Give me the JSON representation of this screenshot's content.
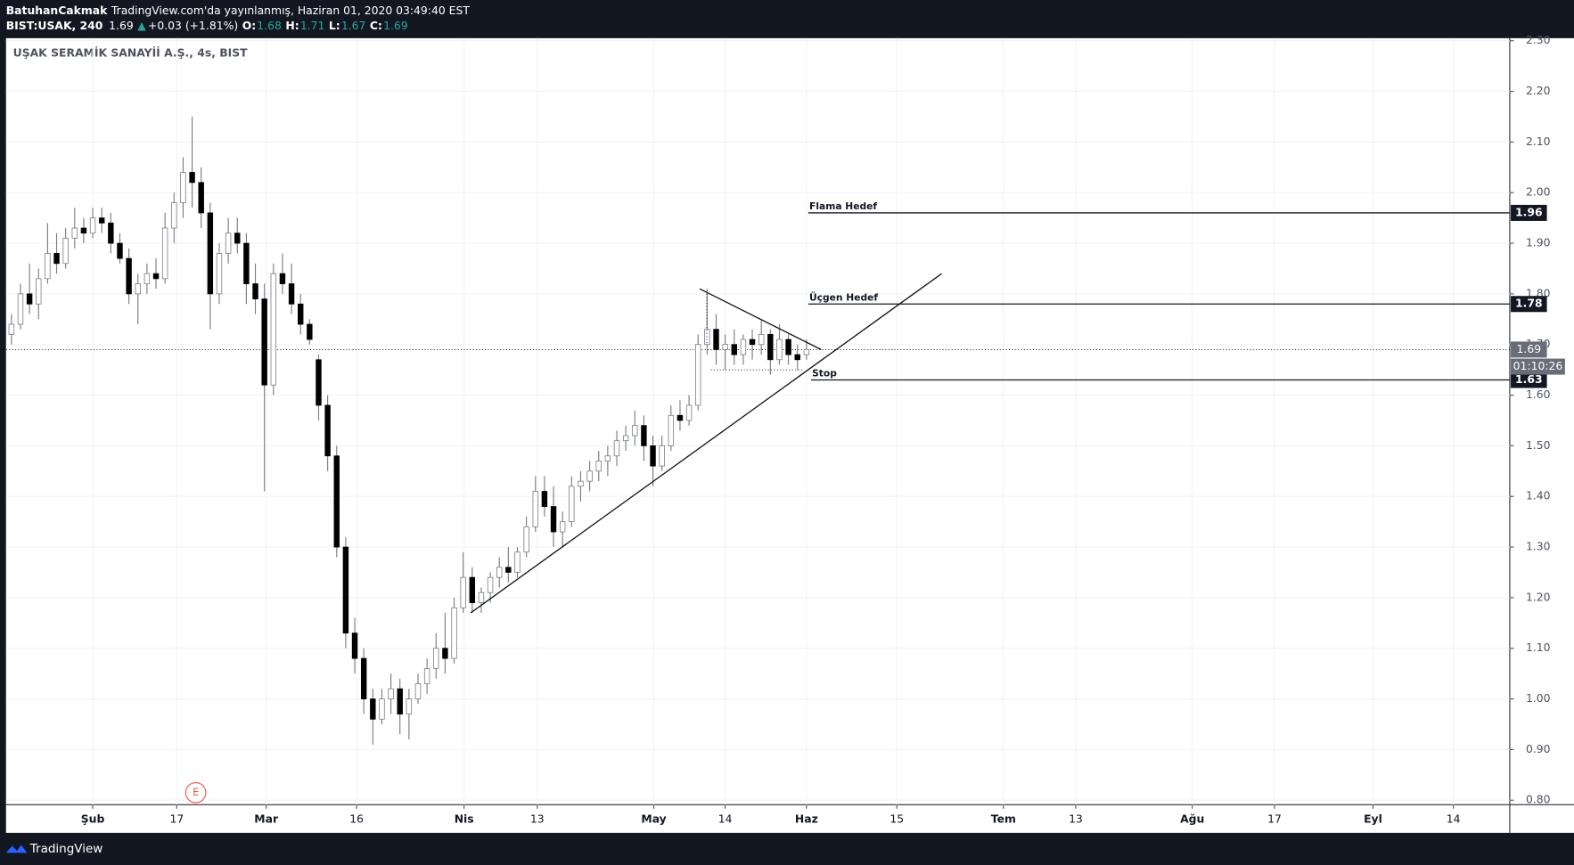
{
  "header": {
    "author": "BatuhanCakmak",
    "published": "TradingView.com'da yayınlanmış, Haziran 01, 2020 03:49:40 EST",
    "symbol": "BIST:USAK, 240",
    "last": 1.69,
    "arrow": "▲",
    "change": "+0.03 (+1.81%)",
    "ohlc": [
      {
        "label": "O:",
        "value": 1.68
      },
      {
        "label": "H:",
        "value": 1.71
      },
      {
        "label": "L:",
        "value": 1.67
      },
      {
        "label": "C:",
        "value": 1.69
      }
    ]
  },
  "footer": {
    "brand": "TradingView"
  },
  "chart_data": {
    "type": "candlestick",
    "title": "UŞAK SERAMİK SANAYİİ A.Ş., 4s, BIST",
    "up_color": "#ffffff",
    "down_color": "#000000",
    "wick_color": "#787b86",
    "grid": true,
    "x": [
      0.6,
      1.6,
      2.6,
      3.6,
      4.6,
      5.6,
      6.6,
      7.6,
      8.6,
      9.6,
      10.6,
      11.6,
      12.6,
      13.6,
      14.6,
      15.6,
      16.6,
      17.6,
      18.6,
      19.6,
      20.6,
      21.6,
      22.6,
      23.6,
      24.6,
      25.6,
      26.6,
      27.6,
      28.6,
      29.6,
      30.6,
      31.6,
      32.6,
      33.6,
      34.6,
      35.6,
      36.6,
      37.6,
      38.6,
      39.6,
      40.6,
      41.6,
      42.6,
      43.6,
      44.6,
      45.6,
      46.6,
      47.6,
      48.6,
      49.6,
      50.6,
      51.6,
      52.6,
      53.6,
      54.6,
      55.6,
      56.6,
      57.6,
      58.6,
      59.6,
      60.6,
      61.6,
      62.6,
      63.6,
      64.6,
      65.6,
      66.6,
      67.6,
      68.6,
      69.6,
      70.6,
      71.6,
      72.6,
      73.6,
      74.6,
      75.6,
      76.6,
      77.6,
      78.6,
      79.6,
      80.6,
      81.6,
      82.6,
      83.6,
      84.6,
      85.6,
      86.6,
      87.6,
      88.6
    ],
    "open": [
      1.72,
      1.74,
      1.8,
      1.78,
      1.83,
      1.88,
      1.86,
      1.91,
      1.93,
      1.92,
      1.95,
      1.94,
      1.9,
      1.87,
      1.8,
      1.82,
      1.84,
      1.83,
      1.93,
      1.98,
      2.04,
      2.02,
      1.96,
      1.8,
      1.88,
      1.92,
      1.9,
      1.82,
      1.79,
      1.62,
      1.84,
      1.82,
      1.78,
      1.74,
      1.67,
      1.58,
      1.48,
      1.3,
      1.13,
      1.08,
      1.0,
      0.96,
      1.0,
      1.02,
      0.97,
      1.0,
      1.03,
      1.06,
      1.1,
      1.08,
      1.18,
      1.24,
      1.19,
      1.21,
      1.24,
      1.26,
      1.25,
      1.29,
      1.34,
      1.41,
      1.38,
      1.33,
      1.35,
      1.42,
      1.43,
      1.45,
      1.47,
      1.48,
      1.51,
      1.52,
      1.54,
      1.5,
      1.46,
      1.5,
      1.56,
      1.55,
      1.58,
      1.7,
      1.73,
      1.69,
      1.7,
      1.68,
      1.71,
      1.7,
      1.72,
      1.67,
      1.71,
      1.68,
      1.68
    ],
    "high": [
      1.76,
      1.82,
      1.86,
      1.85,
      1.94,
      1.92,
      1.93,
      1.97,
      1.95,
      1.97,
      1.97,
      1.96,
      1.92,
      1.89,
      1.84,
      1.86,
      1.87,
      1.96,
      2.0,
      2.07,
      2.15,
      2.05,
      1.98,
      1.9,
      1.95,
      1.95,
      1.92,
      1.86,
      1.82,
      1.86,
      1.88,
      1.86,
      1.8,
      1.75,
      1.68,
      1.6,
      1.5,
      1.32,
      1.16,
      1.1,
      1.02,
      1.02,
      1.05,
      1.04,
      1.02,
      1.05,
      1.08,
      1.13,
      1.17,
      1.2,
      1.29,
      1.26,
      1.22,
      1.25,
      1.28,
      1.3,
      1.3,
      1.36,
      1.44,
      1.44,
      1.42,
      1.37,
      1.44,
      1.45,
      1.47,
      1.49,
      1.5,
      1.53,
      1.54,
      1.57,
      1.56,
      1.52,
      1.52,
      1.58,
      1.59,
      1.6,
      1.72,
      1.81,
      1.76,
      1.72,
      1.73,
      1.72,
      1.73,
      1.75,
      1.73,
      1.74,
      1.72,
      1.7,
      1.71
    ],
    "low": [
      1.7,
      1.73,
      1.76,
      1.75,
      1.82,
      1.84,
      1.85,
      1.89,
      1.9,
      1.91,
      1.92,
      1.88,
      1.86,
      1.78,
      1.74,
      1.8,
      1.81,
      1.82,
      1.9,
      1.95,
      1.97,
      1.93,
      1.73,
      1.78,
      1.86,
      1.88,
      1.78,
      1.76,
      1.41,
      1.6,
      1.8,
      1.76,
      1.72,
      1.7,
      1.55,
      1.45,
      1.28,
      1.1,
      1.05,
      0.97,
      0.91,
      0.95,
      0.97,
      0.93,
      0.92,
      0.99,
      1.01,
      1.04,
      1.05,
      1.07,
      1.17,
      1.17,
      1.17,
      1.19,
      1.22,
      1.23,
      1.24,
      1.28,
      1.33,
      1.36,
      1.3,
      1.3,
      1.34,
      1.39,
      1.41,
      1.43,
      1.44,
      1.46,
      1.49,
      1.5,
      1.47,
      1.42,
      1.45,
      1.49,
      1.53,
      1.54,
      1.57,
      1.68,
      1.66,
      1.65,
      1.66,
      1.66,
      1.67,
      1.68,
      1.64,
      1.66,
      1.66,
      1.65,
      1.67
    ],
    "close": [
      1.74,
      1.8,
      1.78,
      1.83,
      1.88,
      1.86,
      1.91,
      1.93,
      1.92,
      1.95,
      1.94,
      1.9,
      1.87,
      1.8,
      1.82,
      1.84,
      1.83,
      1.93,
      1.98,
      2.04,
      2.02,
      1.96,
      1.8,
      1.88,
      1.92,
      1.9,
      1.82,
      1.79,
      1.62,
      1.84,
      1.82,
      1.78,
      1.74,
      1.71,
      1.58,
      1.48,
      1.3,
      1.13,
      1.08,
      1.0,
      0.96,
      1.0,
      1.02,
      0.97,
      1.0,
      1.03,
      1.06,
      1.1,
      1.08,
      1.18,
      1.24,
      1.19,
      1.21,
      1.24,
      1.26,
      1.25,
      1.29,
      1.34,
      1.41,
      1.38,
      1.33,
      1.35,
      1.42,
      1.43,
      1.45,
      1.47,
      1.48,
      1.51,
      1.52,
      1.54,
      1.5,
      1.46,
      1.5,
      1.56,
      1.55,
      1.58,
      1.7,
      1.73,
      1.69,
      1.7,
      1.68,
      1.71,
      1.7,
      1.72,
      1.67,
      1.71,
      1.68,
      1.67,
      1.69
    ],
    "xlim": [
      0,
      166.44
    ],
    "xticks": [
      {
        "value": 9.6,
        "label": "Şub"
      },
      {
        "value": 18.9,
        "label": "17"
      },
      {
        "value": 28.8,
        "label": "Mar"
      },
      {
        "value": 38.8,
        "label": "16"
      },
      {
        "value": 50.7,
        "label": "Nis"
      },
      {
        "value": 58.8,
        "label": "13"
      },
      {
        "value": 71.7,
        "label": "May"
      },
      {
        "value": 79.6,
        "label": "14"
      },
      {
        "value": 88.6,
        "label": "Haz"
      },
      {
        "value": 98.6,
        "label": "15"
      },
      {
        "value": 110.4,
        "label": "Tem"
      },
      {
        "value": 118.4,
        "label": "13"
      },
      {
        "value": 131.3,
        "label": "Ağu"
      },
      {
        "value": 140.4,
        "label": "17"
      },
      {
        "value": 151.3,
        "label": "Eyl"
      },
      {
        "value": 160.2,
        "label": "14"
      }
    ],
    "ylim": [
      0.791,
      2.305
    ],
    "yticks": [
      {
        "value": 0.8,
        "label": "0.80"
      },
      {
        "value": 0.9,
        "label": "0.90"
      },
      {
        "value": 1.0,
        "label": "1.00"
      },
      {
        "value": 1.1,
        "label": "1.10"
      },
      {
        "value": 1.2,
        "label": "1.20"
      },
      {
        "value": 1.3,
        "label": "1.30"
      },
      {
        "value": 1.4,
        "label": "1.40"
      },
      {
        "value": 1.5,
        "label": "1.50"
      },
      {
        "value": 1.6,
        "label": "1.60"
      },
      {
        "value": 1.7,
        "label": "1.70"
      },
      {
        "value": 1.8,
        "label": "1.80"
      },
      {
        "value": 1.9,
        "label": "1.90"
      },
      {
        "value": 2.0,
        "label": "2.00"
      },
      {
        "value": 2.1,
        "label": "2.10"
      },
      {
        "value": 2.2,
        "label": "2.20"
      },
      {
        "value": 2.3,
        "label": "2.30"
      }
    ],
    "trendlines": [
      {
        "x": [
          51.44,
          103.56
        ],
        "y": [
          1.17,
          1.84
        ],
        "dashed": false
      },
      {
        "x": [
          76.78,
          90.22
        ],
        "y": [
          1.81,
          1.69
        ],
        "dashed": false
      },
      {
        "x": [
          77.56,
          77.56
        ],
        "y": [
          1.8,
          1.7
        ],
        "dashed": true
      },
      {
        "x": [
          78.0,
          88.2
        ],
        "y": [
          1.65,
          1.65
        ],
        "dashed": true
      }
    ],
    "levels": [
      {
        "label": "Flama Hedef",
        "value": 1.96,
        "x_start": 88.8
      },
      {
        "label": "Üçgen Hedef",
        "value": 1.78,
        "x_start": 88.8
      },
      {
        "label": "Stop",
        "value": 1.63,
        "x_start": 89.1
      }
    ],
    "last_price": 1.69,
    "countdown": "01:10:26",
    "events": [
      {
        "x": 21,
        "label": "E"
      }
    ]
  }
}
